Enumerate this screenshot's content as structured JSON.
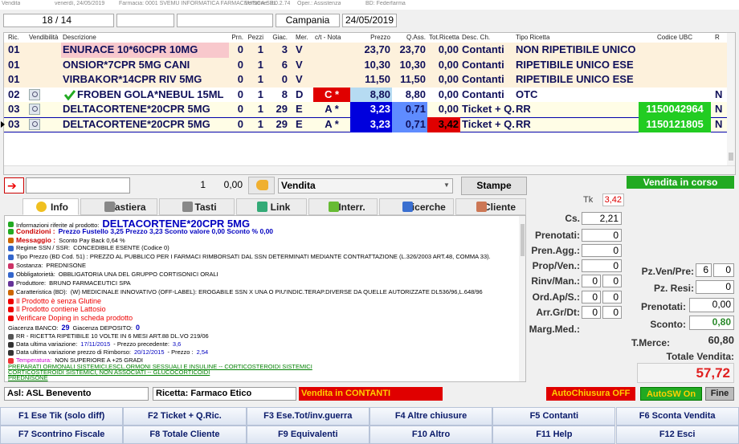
{
  "window": {
    "title": "Vendita",
    "date": "venerdì, 24/05/2019",
    "pharmacy": "Farmacia: 0001 SVEMU INFORMATICA FARMACEUTICA SRL",
    "version": "Versione: 3.0.2.74",
    "operator": "Oper.: Assistenza",
    "db": "BD: Federfarma"
  },
  "top_bar": {
    "counter": "18 / 14",
    "region": "Campania",
    "date": "24/05/2019"
  },
  "table": {
    "columns": [
      "Ric.",
      "Vendibilità",
      "Descrizione",
      "Prn.",
      "Pezzi",
      "Giac.",
      "Mer.",
      "c/t - Nota",
      "Prezzo",
      "Q.Ass.",
      "Tot.Ricetta",
      "Desc. Ch.",
      "Tipo Ricetta",
      "Codice UBC",
      "R"
    ],
    "rows": [
      [
        "01",
        null,
        "ENURACE 10*60CPR 10MG",
        "0",
        "1",
        "3",
        "V",
        null,
        "23,70",
        "23,70",
        "0,00",
        "Contanti",
        "NON RIPETIBILE UNICO",
        null,
        null
      ],
      [
        "01",
        null,
        "ONSIOR*7CPR 5MG CANI",
        "0",
        "1",
        "6",
        "V",
        null,
        "10,30",
        "10,30",
        "0,00",
        "Contanti",
        "RIPETIBILE UNICO ESE",
        null,
        null
      ],
      [
        "01",
        null,
        "VIRBAKOR*14CPR RIV 5MG",
        "0",
        "1",
        "0",
        "V",
        null,
        "11,50",
        "11,50",
        "0,00",
        "Contanti",
        "RIPETIBILE UNICO ESE",
        null,
        null
      ],
      [
        "02",
        null,
        "FROBEN GOLA*NEBUL 15ML",
        "0",
        "1",
        "8",
        "D",
        "C *",
        "8,80",
        "8,80",
        "0,00",
        "Contanti",
        "OTC",
        null,
        "N"
      ],
      [
        "03",
        null,
        "DELTACORTENE*20CPR 5MG",
        "0",
        "1",
        "29",
        "E",
        "A *",
        "3,23",
        "0,71",
        "0,00",
        "Ticket + Q.",
        "RR",
        "1150042964",
        "N"
      ],
      [
        "03",
        null,
        "DELTACORTENE*20CPR 5MG",
        "0",
        "1",
        "29",
        "E",
        "A *",
        "3,23",
        "0,71",
        "3,42",
        "Ticket + Q.",
        "RR",
        "1150121805",
        "N"
      ]
    ]
  },
  "entry": {
    "quantity": "1",
    "amount": "0,00",
    "mode": "Vendita",
    "print": "Stampe",
    "status": "Vendita in corso"
  },
  "tabs": [
    "Info",
    "Tastiera",
    "Tasti",
    "Link",
    "Interr.",
    "Ricerche",
    "Cliente"
  ],
  "info": {
    "lines": [
      [
        "Informazioni riferite al prodotto:",
        "DELTACORTENE*20CPR 5MG"
      ],
      [
        "Condizioni :",
        "Prezzo Fustello 3,25 Prezzo 3,23 Sconto valore 0,00 Sconto % 0,00"
      ],
      [
        "Messaggio :",
        "Sconto Pay Back  0,64 %"
      ],
      [
        "Regime SSN / SSR:",
        "CONCEDIBILE ESENTE (Codice 0)"
      ],
      [
        "Tipo Prezzo (BD Cod. 51) : PREZZO AL PUBBLICO PER I FARMACI RIMBORSATI DAL SSN DETERMINATI MEDIANTE CONTRATTAZIONE (L.326/2003 ART.48, COMMA 33)."
      ],
      [
        "Sostanza:",
        "PREDNISONE"
      ],
      [
        "Obbligatorietà:",
        "OBBLIGATORIA UNA DEL GRUPPO CORTISONICI ORALI"
      ],
      [
        "Produttore:",
        "BRUNO FARMACEUTICI SPA"
      ],
      [
        "Caratteristica (BD):",
        "(W) MEDICINALE INNOVATIVO (OFF-LABEL): EROGABILE SSN X UNA O PIU'INDIC.TERAP.DIVERSE DA QUELLE AUTORIZZATE DL536/96,L.648/96"
      ],
      [
        "Il Prodotto è senza Glutine"
      ],
      [
        "Il Prodotto contiene Lattosio"
      ],
      [
        "Verificare Doping in scheda prodotto"
      ],
      [
        "Giacenza BANCO:",
        "29",
        "Giacenza DEPOSITO:",
        "0"
      ],
      [
        "RR - RICETTA RIPETIBILE 10 VOLTE IN 6 MESI ART.88 DL.VO 219/06"
      ],
      [
        "Data ultima variazione:",
        "17/11/2015",
        "- Prezzo precedente:",
        "3,6"
      ],
      [
        "Data ultima variazione prezzo di Rimborso:",
        "20/12/2015",
        "- Prezzo :",
        "2,54"
      ],
      [
        "Temperatura:",
        "NON SUPERIORE A +25 GRADI"
      ],
      [
        "PREPARATI ORMONALI SISTEMICI,ESCL.ORMONI SESSUALI E INSULINE -- CORTICOSTEROIDI SISTEMICI"
      ],
      [
        "CORTICOSTEROIDI SISTEMICI, NON ASSOCIATI -- GLUCOCORTICOIDI"
      ],
      [
        "PREDNISONE"
      ]
    ]
  },
  "counters": {
    "tk": {
      "label": "Tk",
      "value": "3,42"
    },
    "fields": [
      {
        "label": "Cs.",
        "values": [
          "2,21"
        ]
      },
      {
        "label": "Prenotati:",
        "values": [
          "0"
        ]
      },
      {
        "label": "Pren.Agg.:",
        "values": [
          "0"
        ]
      },
      {
        "label": "Prop/Ven.:",
        "values": [
          "0"
        ]
      },
      {
        "label": "Rinv/Man.:",
        "values": [
          "0",
          "0"
        ]
      },
      {
        "label": "Ord.Ap/S.:",
        "values": [
          "0",
          "0"
        ]
      },
      {
        "label": "Arr.Gr/Dt:",
        "values": [
          "0",
          "0"
        ]
      },
      {
        "label": "Marg.Med.:"
      }
    ]
  },
  "totals": {
    "pieces": {
      "label": "Pz.Ven/Pre:",
      "values": [
        "6",
        "0"
      ]
    },
    "returns": {
      "label": "Pz. Resi:",
      "value": "0"
    },
    "booked": {
      "label": "Prenotati:",
      "value": "0,00"
    },
    "discount": {
      "label": "Sconto:",
      "value": "0,80"
    },
    "goods": {
      "label": "T.Merce:",
      "value": "60,80"
    },
    "total": {
      "label": "Totale Vendita:",
      "value": "57,72"
    }
  },
  "status": {
    "asl": "Asl: ASL Benevento",
    "prescription": "Ricetta: Farmaco Etico",
    "payment": "Vendita in CONTANTI",
    "auto_close": "AutoChiusura OFF",
    "auto_sw": "AutoSW On",
    "end": "Fine"
  },
  "function_keys": [
    [
      "F1 Ese Tik (solo diff)",
      "F2 Ticket + Q.Ric.",
      "F3 Ese.Tot/inv.guerra",
      "F4 Altre chiusure",
      "F5 Contanti",
      "F6 Sconta Vendita"
    ],
    [
      "F7 Scontrino Fiscale",
      "F8 Totale Cliente",
      "F9 Equivalenti",
      "F10 Altro",
      "F11 Help",
      "F12 Esci"
    ]
  ]
}
